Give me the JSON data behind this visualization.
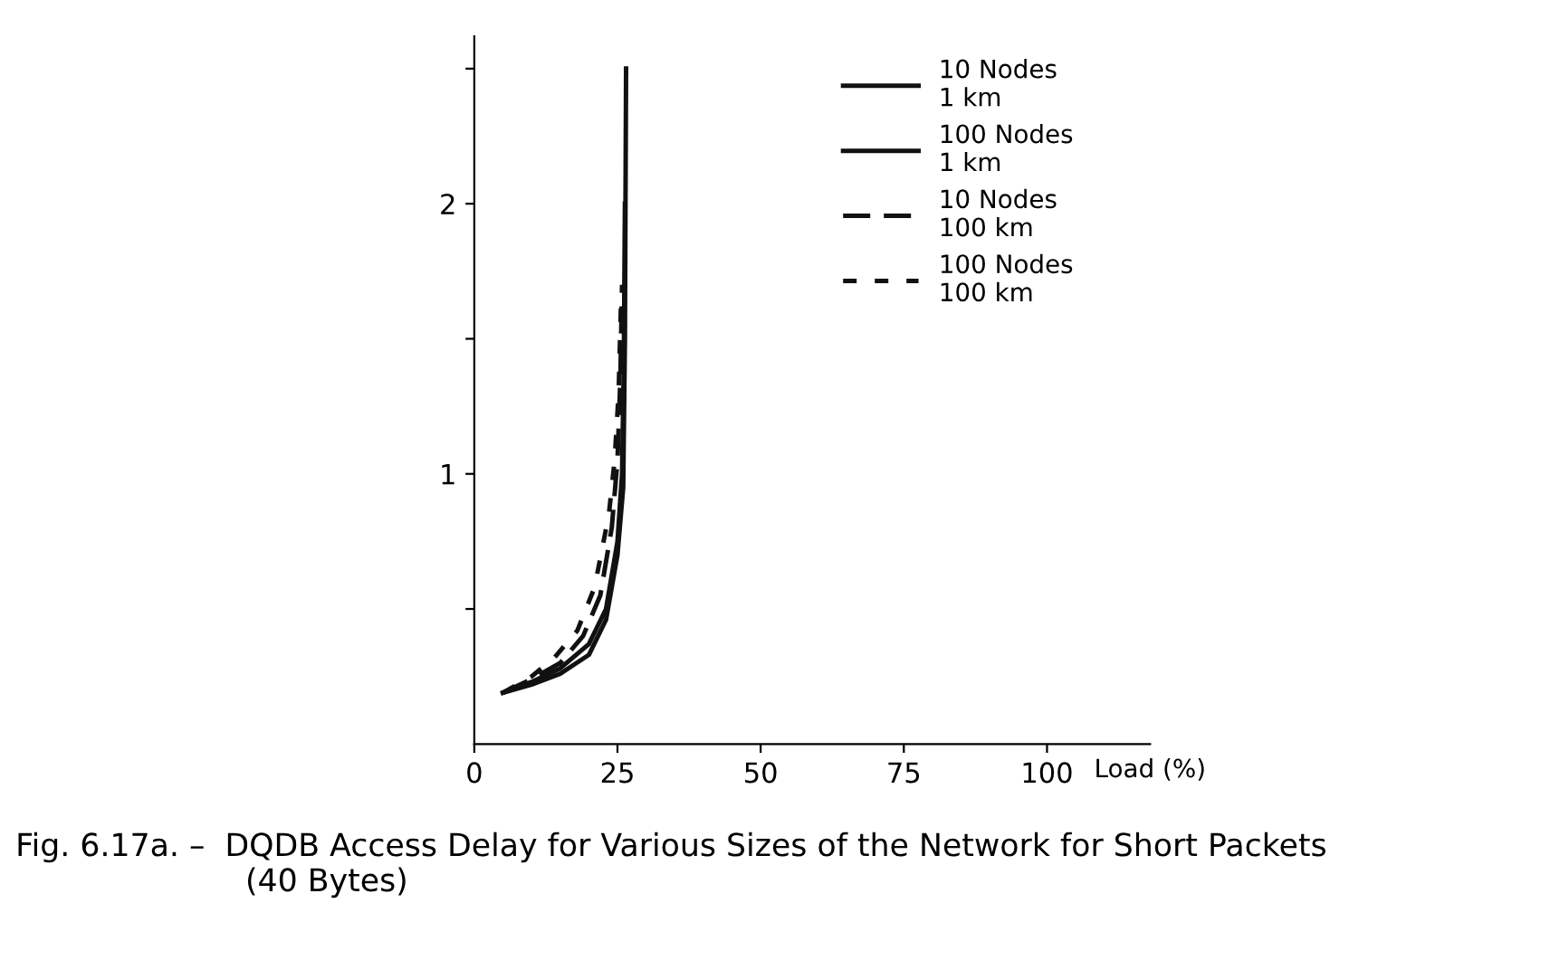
{
  "chart_data": {
    "type": "line",
    "xlabel": "Load (%)",
    "xlim": [
      0,
      118
    ],
    "ylim": [
      0,
      2.62
    ],
    "xticks": [
      0,
      25,
      50,
      75,
      100
    ],
    "yticks": [
      {
        "value": 0.5,
        "label": null
      },
      1,
      {
        "value": 1.5,
        "label": null
      },
      2,
      {
        "value": 2.5,
        "label": null
      }
    ],
    "grid": false,
    "legend": "top right",
    "series": [
      {
        "name": "10 Nodes\n1 km",
        "color": "#111111",
        "line_style": "solid",
        "x": [
          5,
          10,
          15,
          20,
          23,
          25,
          26,
          26.3,
          26.5
        ],
        "values": [
          0.19,
          0.22,
          0.26,
          0.33,
          0.46,
          0.7,
          0.95,
          1.5,
          2.5
        ]
      },
      {
        "name": "100 Nodes\n1 km",
        "color": "#111111",
        "line_style": "solid",
        "x": [
          5,
          10,
          15,
          20,
          23,
          25,
          25.8,
          26.1,
          26.3
        ],
        "values": [
          0.19,
          0.23,
          0.28,
          0.37,
          0.5,
          0.75,
          1.0,
          1.4,
          2.0
        ]
      },
      {
        "name": "10 Nodes\n100 km",
        "color": "#111111",
        "line_style": "dashed",
        "x": [
          5,
          10,
          15,
          19,
          22,
          24,
          25,
          25.5,
          25.8
        ],
        "values": [
          0.19,
          0.24,
          0.3,
          0.4,
          0.55,
          0.8,
          1.05,
          1.35,
          1.7
        ]
      },
      {
        "name": "100 Nodes\n100 km",
        "color": "#111111",
        "line_style": "dotted",
        "x": [
          5,
          10,
          14,
          18,
          21,
          23.5,
          24.5,
          25.2,
          25.6
        ],
        "values": [
          0.19,
          0.25,
          0.32,
          0.42,
          0.58,
          0.85,
          1.05,
          1.3,
          1.62
        ]
      }
    ],
    "annotations": [
      "Fig. 6.17a. –  DQDB Access Delay for Various Sizes of the Network for Short Packets\n                       (40 Bytes)"
    ]
  }
}
